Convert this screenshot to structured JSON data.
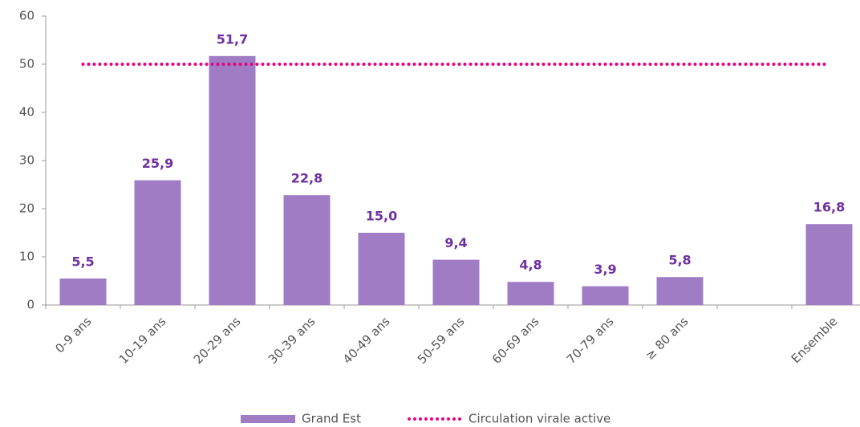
{
  "chart_data": {
    "type": "bar",
    "categories": [
      "0-9 ans",
      "10-19 ans",
      "20-29 ans",
      "30-39 ans",
      "40-49 ans",
      "50-59 ans",
      "60-69 ans",
      "70-79 ans",
      "≥ 80 ans",
      null,
      "Ensemble"
    ],
    "series": [
      {
        "name": "Grand Est",
        "color": "#a07cc5",
        "values": [
          5.5,
          25.9,
          51.7,
          22.8,
          15.0,
          9.4,
          4.8,
          3.9,
          5.8,
          null,
          16.8
        ],
        "value_labels": [
          "5,5",
          "25,9",
          "51,7",
          "22,8",
          "15,0",
          "9,4",
          "4,8",
          "3,9",
          "5,8",
          null,
          "16,8"
        ]
      },
      {
        "name": "Circulation virale active",
        "color": "#e6007e",
        "type": "line",
        "values": [
          50,
          50,
          50,
          50,
          50,
          50,
          50,
          50,
          50,
          50,
          50
        ]
      }
    ],
    "ylim": [
      0,
      60
    ],
    "yticks": [
      0,
      10,
      20,
      30,
      40,
      50,
      60
    ],
    "legend": "bottom"
  }
}
